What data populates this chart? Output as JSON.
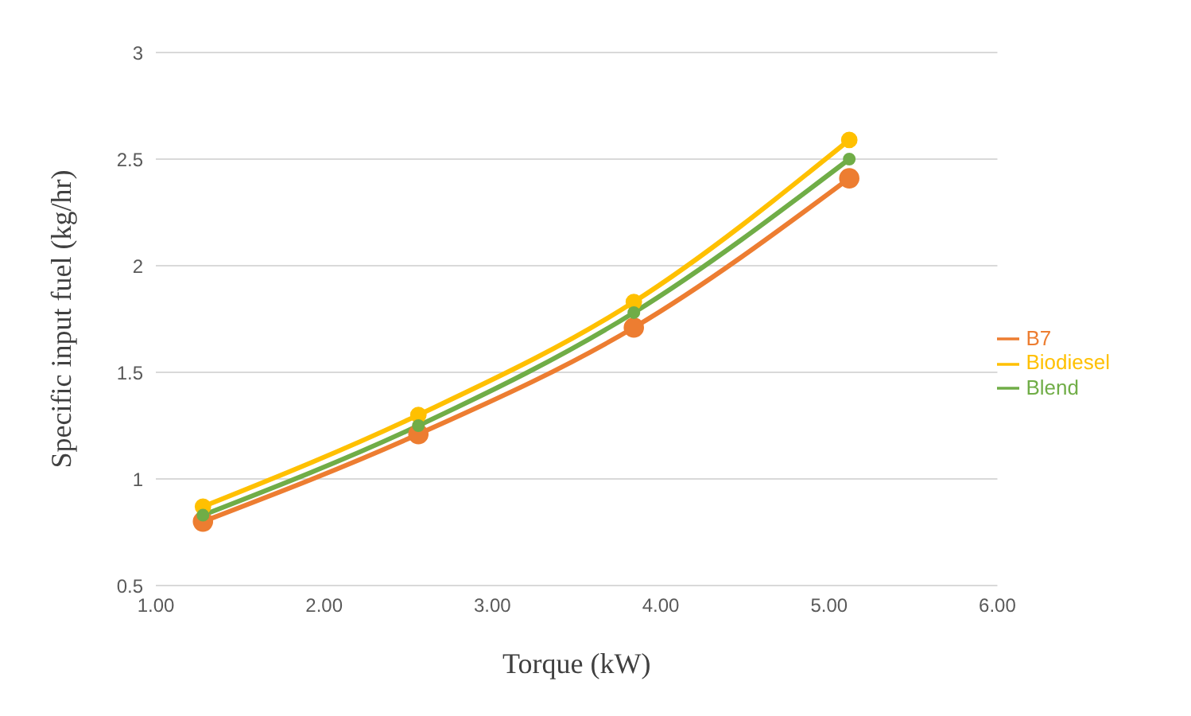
{
  "chart_data": {
    "type": "line",
    "xlabel": "Torque (kW)",
    "ylabel": "Specific input fuel (kg/hr)",
    "x": [
      1.28,
      2.56,
      3.84,
      5.12
    ],
    "series": [
      {
        "name": "B7",
        "color": "#ed7d31",
        "values": [
          0.8,
          1.21,
          1.71,
          2.41
        ]
      },
      {
        "name": "Biodiesel",
        "color": "#ffc000",
        "values": [
          0.87,
          1.3,
          1.83,
          2.59
        ]
      },
      {
        "name": "Blend",
        "color": "#70ad47",
        "values": [
          0.83,
          1.25,
          1.78,
          2.5
        ]
      }
    ],
    "xlim": [
      1,
      6
    ],
    "xticks": [
      {
        "value": 1,
        "label": "1.00"
      },
      {
        "value": 2,
        "label": "2.00"
      },
      {
        "value": 3,
        "label": "3.00"
      },
      {
        "value": 4,
        "label": "4.00"
      },
      {
        "value": 5,
        "label": "5.00"
      },
      {
        "value": 6,
        "label": "6.00"
      }
    ],
    "ylim": [
      0.5,
      3
    ],
    "yticks": [
      0.5,
      1,
      1.5,
      2,
      2.5,
      3
    ],
    "grid": "y",
    "legend": "right",
    "marker": "circle",
    "line_style": "solid"
  }
}
